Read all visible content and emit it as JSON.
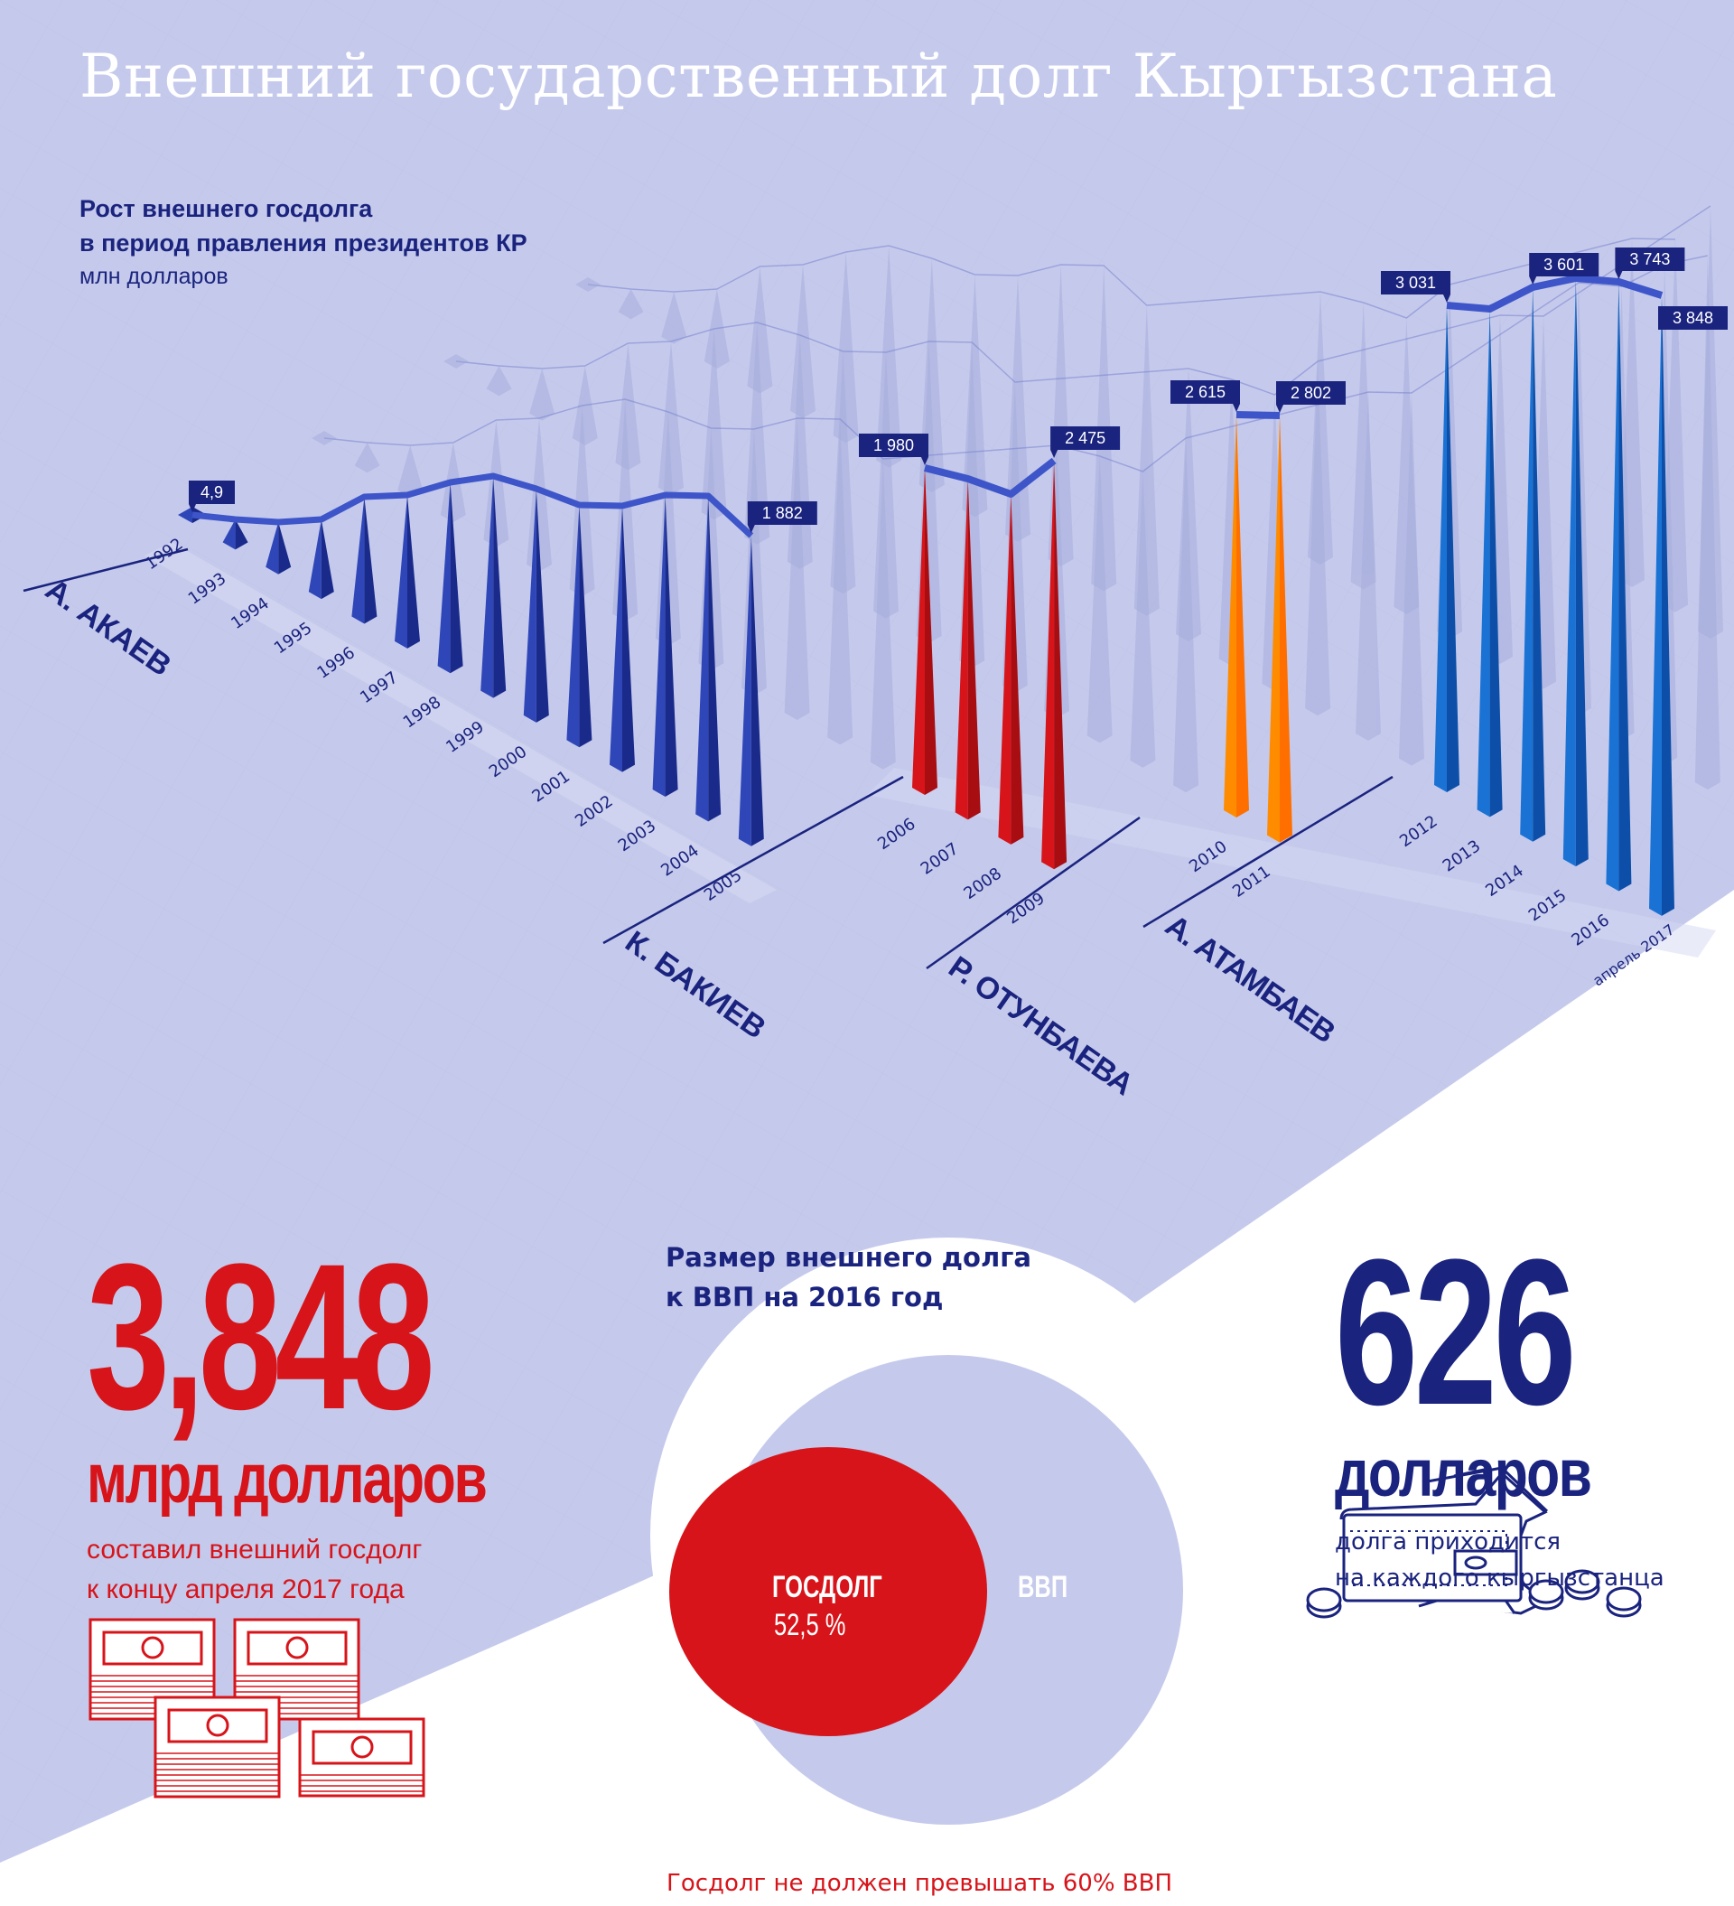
{
  "header": {
    "title": "Внешний государственный долг Кыргызстана"
  },
  "colors": {
    "background_lavender": "#c5caec",
    "white": "#ffffff",
    "navy": "#1a237e",
    "akaev_blue": "#2f46b8",
    "bakiev_red": "#d7141a",
    "otunbaeva_orange": "#ff8c00",
    "atambaev_blue": "#1a73d4",
    "ghost": "#a7aedd"
  },
  "chart_data": {
    "type": "bar",
    "title": "Рост внешнего госдолга в период правления президентов КР",
    "subtitle_line1": "Рост внешнего госдолга",
    "subtitle_line2": "в период правления президентов КР",
    "ylabel": "млн долларов",
    "categories": [
      "1992",
      "1993",
      "1994",
      "1995",
      "1996",
      "1997",
      "1998",
      "1999",
      "2000",
      "2001",
      "2002",
      "2003",
      "2004",
      "2005",
      "2006",
      "2007",
      "2008",
      "2009",
      "2010",
      "2011",
      "2012",
      "2013",
      "2014",
      "2015",
      "2016",
      "апрель 2017"
    ],
    "series": [
      {
        "name": "А. АКАЕВ",
        "color_key": "akaev_blue",
        "categories": [
          "1992",
          "1993",
          "1994",
          "1995",
          "1996",
          "1997",
          "1998",
          "1999",
          "2000",
          "2001",
          "2002",
          "2003",
          "2004",
          "2005"
        ],
        "labeled_values": {
          "1992": 4.9,
          "2005": 1882
        },
        "value_labels": {
          "1992": "4,9",
          "2005": "1 882"
        }
      },
      {
        "name": "К. БАКИЕВ",
        "color_key": "bakiev_red",
        "categories": [
          "2006",
          "2007",
          "2008",
          "2009"
        ],
        "labeled_values": {
          "2006": 1980,
          "2009": 2475
        },
        "value_labels": {
          "2006": "1 980",
          "2009": "2 475"
        }
      },
      {
        "name": "Р. ОТУНБАЕВА",
        "color_key": "otunbaeva_orange",
        "categories": [
          "2010",
          "2011"
        ],
        "labeled_values": {
          "2010": 2615,
          "2011": 2802
        },
        "value_labels": {
          "2010": "2 615",
          "2011": "2 802"
        }
      },
      {
        "name": "А. АТАМБАЕВ",
        "color_key": "atambaev_blue",
        "categories": [
          "2012",
          "2013",
          "2014",
          "2015",
          "2016",
          "апрель 2017"
        ],
        "labeled_values": {
          "2012": 3031,
          "2014": 3601,
          "2016": 3743,
          "апрель 2017": 3848
        },
        "value_labels": {
          "2012": "3 031",
          "2014": "3 601",
          "2016": "3 743",
          "апрель 2017": "3 848"
        }
      }
    ],
    "grid": false,
    "legend": "none"
  },
  "presidents": [
    "А. АКАЕВ",
    "К. БАКИЕВ",
    "Р. ОТУНБАЕВА",
    "А. АТАМБАЕВ"
  ],
  "total_debt": {
    "value": "3,848",
    "unit": "млрд долларов",
    "desc_line1": "составил внешний госдолг",
    "desc_line2": "к концу апреля 2017 года"
  },
  "gdp_ratio": {
    "title_line1": "Размер внешнего долга",
    "title_line2": "к ВВП на 2016 год",
    "debt_label": "ГОСДОЛГ",
    "debt_percent_label": "52,5 %",
    "debt_percent": 52.5,
    "gdp_label": "ВВП",
    "note": "Госдолг не должен превышать 60% ВВП"
  },
  "per_capita": {
    "value": "626",
    "unit": "долларов",
    "desc_line1": "долга приходится",
    "desc_line2": "на каждого кыргызстанца"
  },
  "icons": [
    "money-stacks-icon",
    "wallet-icon",
    "coins-icon"
  ]
}
